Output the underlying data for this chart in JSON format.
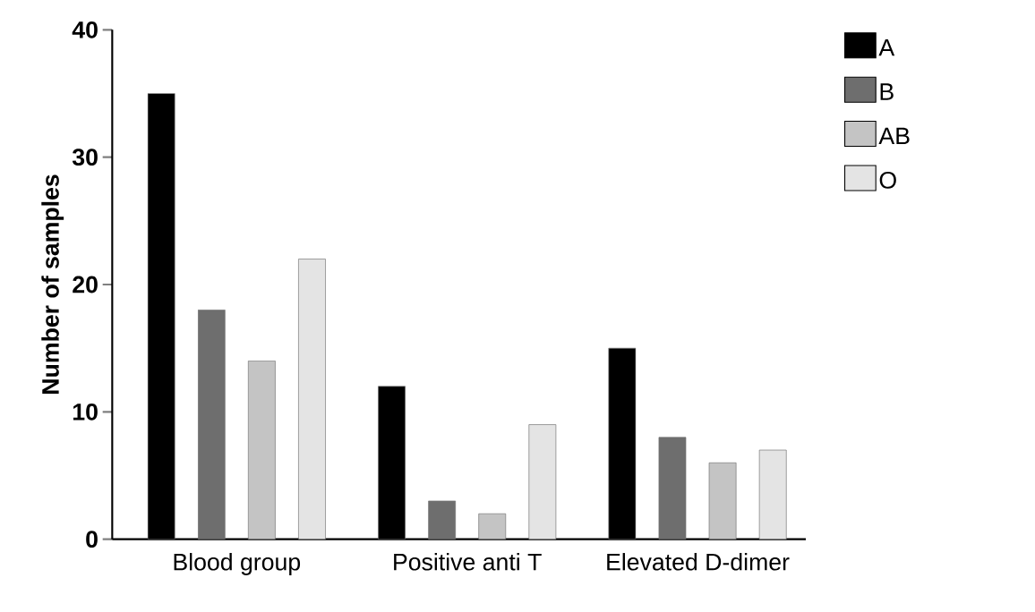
{
  "chart_data": {
    "type": "bar",
    "ylabel": "Number of samples",
    "categories": [
      "Blood group",
      "Positive anti T",
      "Elevated D-dimer"
    ],
    "series": [
      {
        "name": "A",
        "color": "#000000",
        "values": [
          35,
          12,
          15
        ]
      },
      {
        "name": "B",
        "color": "#6e6e6e",
        "values": [
          18,
          3,
          8
        ]
      },
      {
        "name": "AB",
        "color": "#c4c4c4",
        "values": [
          14,
          2,
          6
        ]
      },
      {
        "name": "O",
        "color": "#e4e4e4",
        "values": [
          22,
          9,
          7
        ]
      }
    ],
    "ylim": [
      0,
      40
    ],
    "yticks": [
      0,
      10,
      20,
      30,
      40
    ],
    "legend": "top right"
  }
}
